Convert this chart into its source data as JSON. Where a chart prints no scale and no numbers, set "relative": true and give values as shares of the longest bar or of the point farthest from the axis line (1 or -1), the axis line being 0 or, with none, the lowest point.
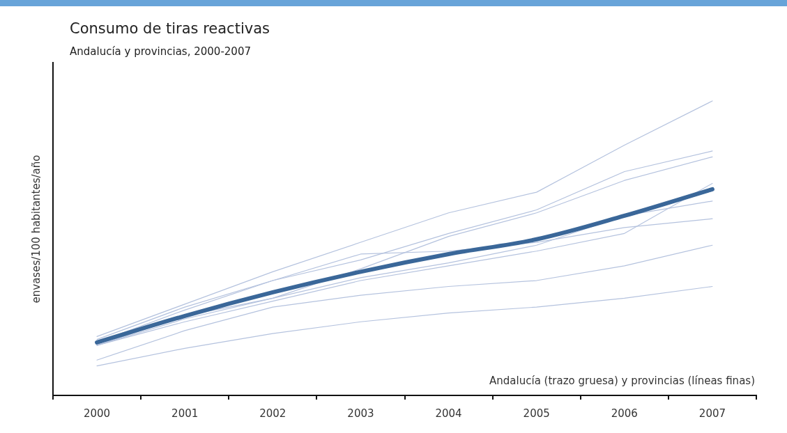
{
  "chart_data": {
    "type": "line",
    "title": "Consumo de tiras reactivas",
    "subtitle": "Andalucía y provincias, 2000-2007",
    "ylabel": "envases/100 habitantes/año",
    "relative": true,
    "categories": [
      "2000",
      "2001",
      "2002",
      "2003",
      "2004",
      "2005",
      "2006",
      "2007"
    ],
    "annotations": [
      "Andalucía (trazo gruesa) y provincias (líneas finas)"
    ],
    "legend": false,
    "grid": false,
    "marker": "none",
    "line_style": "solid",
    "series": [
      {
        "color": "#b4c2de",
        "values": [
          0.2,
          0.31,
          0.42,
          0.52,
          0.62,
          0.69,
          0.85,
          1.0
        ]
      },
      {
        "color": "#b4c2de",
        "values": [
          0.19,
          0.3,
          0.39,
          0.46,
          0.55,
          0.63,
          0.76,
          0.83
        ]
      },
      {
        "color": "#b4c2de",
        "values": [
          0.17,
          0.27,
          0.33,
          0.43,
          0.54,
          0.62,
          0.73,
          0.81
        ]
      },
      {
        "color": "#b4c2de",
        "values": [
          0.17,
          0.25,
          0.32,
          0.39,
          0.44,
          0.49,
          0.55,
          0.72
        ]
      },
      {
        "color": "#b4c2de",
        "values": [
          0.17,
          0.26,
          0.33,
          0.4,
          0.45,
          0.51,
          0.61,
          0.66
        ]
      },
      {
        "color": "#b4c2de",
        "values": [
          0.18,
          0.29,
          0.39,
          0.48,
          0.49,
          0.52,
          0.57,
          0.6
        ]
      },
      {
        "color": "#b4c2de",
        "values": [
          0.12,
          0.22,
          0.3,
          0.34,
          0.37,
          0.39,
          0.44,
          0.51
        ]
      },
      {
        "color": "#b4c2de",
        "values": [
          0.1,
          0.16,
          0.21,
          0.25,
          0.28,
          0.3,
          0.33,
          0.37
        ]
      },
      {
        "color": "#3a6799",
        "values": [
          0.18,
          0.27,
          0.35,
          0.42,
          0.48,
          0.53,
          0.61,
          0.7
        ]
      }
    ]
  }
}
